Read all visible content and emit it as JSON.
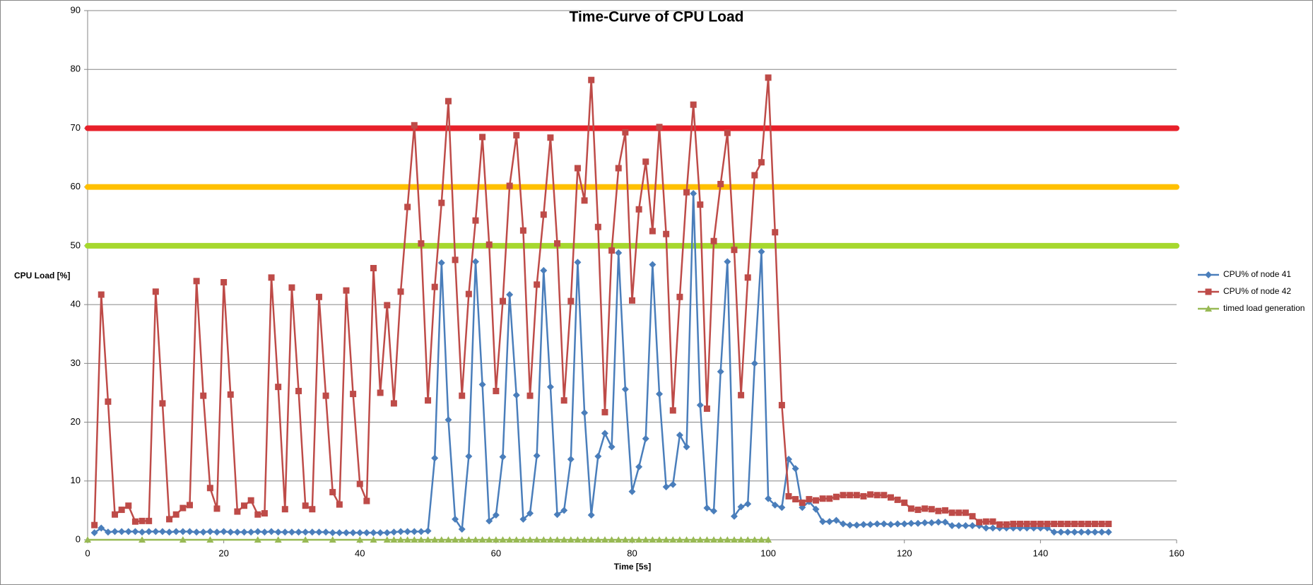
{
  "chart_data": {
    "type": "line",
    "title": "Time-Curve of CPU Load",
    "x_label": "Time [5s]",
    "y_label": "CPU Load [%]",
    "xlim": [
      0,
      160
    ],
    "xticks": [
      0,
      20,
      40,
      60,
      80,
      100,
      120,
      140,
      160
    ],
    "ylim": [
      0,
      90
    ],
    "yticks": [
      0,
      10,
      20,
      30,
      40,
      50,
      60,
      70,
      80,
      90
    ],
    "grid": true,
    "legend": "right",
    "reference_lines": [
      {
        "value": 70,
        "color": "#e8202a"
      },
      {
        "value": 60,
        "color": "#ffc000"
      },
      {
        "value": 50,
        "color": "#a6d82e"
      }
    ],
    "x": [
      1,
      2,
      3,
      4,
      5,
      6,
      7,
      8,
      9,
      10,
      11,
      12,
      13,
      14,
      15,
      16,
      17,
      18,
      19,
      20,
      21,
      22,
      23,
      24,
      25,
      26,
      27,
      28,
      29,
      30,
      31,
      32,
      33,
      34,
      35,
      36,
      37,
      38,
      39,
      40,
      41,
      42,
      43,
      44,
      45,
      46,
      47,
      48,
      49,
      50,
      51,
      52,
      53,
      54,
      55,
      56,
      57,
      58,
      59,
      60,
      61,
      62,
      63,
      64,
      65,
      66,
      67,
      68,
      69,
      70,
      71,
      72,
      73,
      74,
      75,
      76,
      77,
      78,
      79,
      80,
      81,
      82,
      83,
      84,
      85,
      86,
      87,
      88,
      89,
      90,
      91,
      92,
      93,
      94,
      95,
      96,
      97,
      98,
      99,
      100,
      101,
      102,
      103,
      104,
      105,
      106,
      107,
      108,
      109,
      110,
      111,
      112,
      113,
      114,
      115,
      116,
      117,
      118,
      119,
      120,
      121,
      122,
      123,
      124,
      125,
      126,
      127,
      128,
      129,
      130,
      131,
      132,
      133,
      134,
      135,
      136,
      137,
      138,
      139,
      140,
      141,
      142,
      143,
      144,
      145,
      146,
      147,
      148,
      149,
      150
    ],
    "series": [
      {
        "name": "CPU% of node 41",
        "color": "#4a7ebb",
        "marker": "diamond",
        "values": [
          1.2,
          2,
          1.3,
          1.4,
          1.4,
          1.4,
          1.4,
          1.3,
          1.4,
          1.4,
          1.4,
          1.3,
          1.4,
          1.4,
          1.4,
          1.3,
          1.3,
          1.4,
          1.3,
          1.4,
          1.3,
          1.3,
          1.3,
          1.3,
          1.4,
          1.3,
          1.4,
          1.3,
          1.3,
          1.3,
          1.3,
          1.3,
          1.3,
          1.3,
          1.3,
          1.2,
          1.2,
          1.2,
          1.2,
          1.2,
          1.2,
          1.2,
          1.2,
          1.2,
          1.3,
          1.4,
          1.4,
          1.4,
          1.4,
          1.5,
          13.9,
          47.1,
          20.4,
          3.5,
          1.8,
          14.2,
          47.3,
          26.4,
          3.2,
          4.2,
          14.1,
          41.7,
          24.6,
          3.5,
          4.5,
          14.3,
          45.8,
          26,
          4.3,
          5,
          13.7,
          47.2,
          21.6,
          4.2,
          14.2,
          18.1,
          15.8,
          48.8,
          25.6,
          8.2,
          12.4,
          17.2,
          46.8,
          24.8,
          9,
          9.4,
          17.8,
          15.8,
          58.9,
          22.9,
          5.4,
          4.9,
          28.6,
          47.3,
          4,
          5.6,
          6.1,
          30,
          49,
          7,
          5.9,
          5.5,
          13.7,
          12.1,
          5.5,
          6.5,
          5.2,
          3.1,
          3.1,
          3.3,
          2.7,
          2.5,
          2.5,
          2.6,
          2.6,
          2.7,
          2.7,
          2.6,
          2.7,
          2.7,
          2.8,
          2.8,
          2.9,
          2.9,
          3,
          3,
          2.4,
          2.4,
          2.4,
          2.4,
          2.4,
          2,
          2,
          2,
          2,
          2,
          2,
          2,
          2,
          2,
          2,
          1.3,
          1.3,
          1.3,
          1.3,
          1.3,
          1.3,
          1.3,
          1.3,
          1.3
        ]
      },
      {
        "name": "CPU% of node 42",
        "color": "#be4b48",
        "marker": "square",
        "values": [
          2.5,
          41.7,
          23.5,
          4.3,
          5.1,
          5.8,
          3.1,
          3.2,
          3.2,
          42.2,
          23.2,
          3.5,
          4.3,
          5.4,
          5.9,
          44,
          24.5,
          8.8,
          5.3,
          43.8,
          24.7,
          4.8,
          5.8,
          6.7,
          4.3,
          4.5,
          44.6,
          26,
          5.2,
          42.9,
          25.3,
          5.8,
          5.2,
          41.3,
          24.5,
          8.1,
          6,
          42.4,
          24.8,
          9.5,
          6.6,
          46.2,
          25,
          39.9,
          23.2,
          42.2,
          56.6,
          70.5,
          50.4,
          23.7,
          43,
          57.3,
          74.6,
          47.6,
          24.5,
          41.8,
          54.3,
          68.5,
          50.2,
          25.3,
          40.6,
          60.2,
          68.8,
          52.6,
          24.5,
          43.4,
          55.3,
          68.4,
          50.4,
          23.7,
          40.6,
          63.2,
          57.7,
          78.2,
          53.2,
          21.7,
          49.2,
          63.2,
          69.3,
          40.7,
          56.2,
          64.3,
          52.5,
          70.2,
          52,
          22,
          41.3,
          59.1,
          74,
          57,
          22.3,
          50.8,
          60.5,
          69.2,
          49.3,
          24.6,
          44.6,
          62,
          64.2,
          78.6,
          52.3,
          22.9,
          7.4,
          6.9,
          6.3,
          6.9,
          6.7,
          7,
          7,
          7.3,
          7.6,
          7.6,
          7.6,
          7.4,
          7.7,
          7.6,
          7.6,
          7.2,
          6.8,
          6.3,
          5.3,
          5.1,
          5.3,
          5.2,
          4.9,
          5,
          4.6,
          4.6,
          4.6,
          4,
          3,
          3.1,
          3.1,
          2.6,
          2.6,
          2.7,
          2.7,
          2.7,
          2.7,
          2.7,
          2.7,
          2.7,
          2.7,
          2.7,
          2.7,
          2.7,
          2.7,
          2.7,
          2.7,
          2.7
        ]
      },
      {
        "name": "timed load generation",
        "color": "#98b954",
        "marker": "triangle",
        "x": [
          0,
          8,
          14,
          18,
          25,
          28,
          32,
          36,
          40,
          42,
          44,
          45,
          46,
          47,
          48,
          49,
          50,
          51,
          52,
          53,
          54,
          55,
          56,
          57,
          58,
          59,
          60,
          61,
          62,
          63,
          64,
          65,
          66,
          67,
          68,
          69,
          70,
          71,
          72,
          73,
          74,
          75,
          76,
          77,
          78,
          79,
          80,
          81,
          82,
          83,
          84,
          85,
          86,
          87,
          88,
          89,
          90,
          91,
          92,
          93,
          94,
          95,
          96,
          97,
          98,
          99,
          100
        ],
        "values": [
          0,
          0,
          0,
          0,
          0,
          0,
          0,
          0,
          0,
          0,
          0,
          0,
          0,
          0,
          0,
          0,
          0,
          0,
          0,
          0,
          0,
          0,
          0,
          0,
          0,
          0,
          0,
          0,
          0,
          0,
          0,
          0,
          0,
          0,
          0,
          0,
          0,
          0,
          0,
          0,
          0,
          0,
          0,
          0,
          0,
          0,
          0,
          0,
          0,
          0,
          0,
          0,
          0,
          0,
          0,
          0,
          0,
          0,
          0,
          0,
          0,
          0,
          0,
          0,
          0,
          0,
          0
        ]
      }
    ]
  }
}
